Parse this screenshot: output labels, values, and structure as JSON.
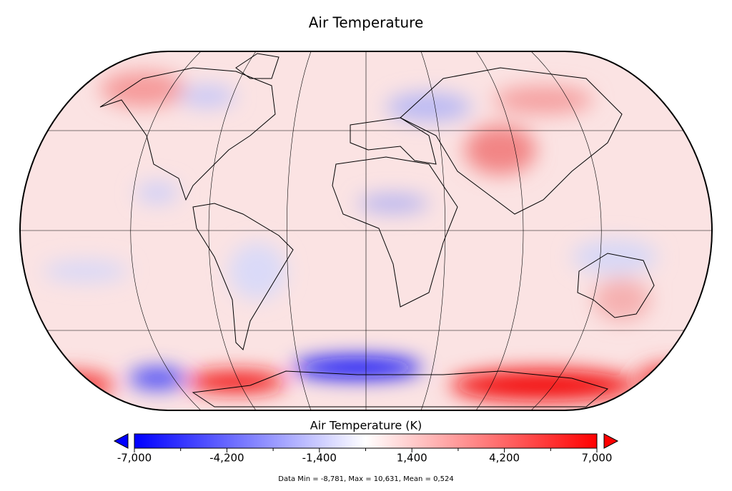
{
  "title": "Air Temperature",
  "colorbar": {
    "label": "Air Temperature (K)",
    "range": [
      -7000,
      7000
    ],
    "ticks": [
      {
        "value": -7000,
        "label": "-7,000"
      },
      {
        "value": -4200,
        "label": "-4,200"
      },
      {
        "value": -1400,
        "label": "-1,400"
      },
      {
        "value": 1400,
        "label": "1,400"
      },
      {
        "value": 4200,
        "label": "4,200"
      },
      {
        "value": 7000,
        "label": "7,000"
      }
    ],
    "minor_ticks": [
      -5600,
      -2800,
      0,
      2800,
      5600
    ],
    "colors": [
      "#0000ff",
      "#ffffff",
      "#ff0000"
    ]
  },
  "footer": "Data Min = -8,781, Max = 10,631, Mean = 0,524"
}
